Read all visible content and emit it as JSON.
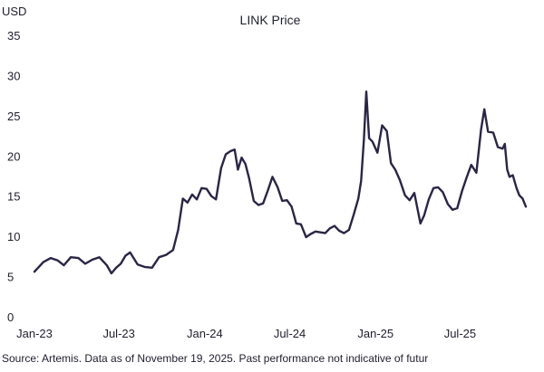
{
  "chart_data": {
    "type": "line",
    "title": "LINK Price",
    "ylabel": "USD",
    "xlabel": "",
    "ylim": [
      0,
      35
    ],
    "yticks": [
      0,
      5,
      10,
      15,
      20,
      25,
      30,
      35
    ],
    "xlim": [
      "2023-01-01",
      "2025-11-19"
    ],
    "xticks": [
      {
        "date": "2023-01-01",
        "label": "Jan-23"
      },
      {
        "date": "2023-07-01",
        "label": "Jul-23"
      },
      {
        "date": "2024-01-01",
        "label": "Jan-24"
      },
      {
        "date": "2024-07-01",
        "label": "Jul-24"
      },
      {
        "date": "2025-01-01",
        "label": "Jan-25"
      },
      {
        "date": "2025-07-01",
        "label": "Jul-25"
      }
    ],
    "grid": false,
    "legend": "none",
    "line_color": "#2a2545",
    "series": [
      {
        "x": [
          "2023-01-01",
          "2023-01-20",
          "2023-02-05",
          "2023-02-20",
          "2023-03-05",
          "2023-03-20",
          "2023-04-05",
          "2023-04-20",
          "2023-05-05",
          "2023-05-20",
          "2023-06-05",
          "2023-06-15",
          "2023-06-25",
          "2023-07-05",
          "2023-07-15",
          "2023-07-25",
          "2023-08-10",
          "2023-08-25",
          "2023-09-10",
          "2023-09-25",
          "2023-10-10",
          "2023-10-25",
          "2023-11-05",
          "2023-11-15",
          "2023-11-25",
          "2023-12-05",
          "2023-12-15",
          "2023-12-25",
          "2024-01-05",
          "2024-01-15",
          "2024-01-25",
          "2024-02-05",
          "2024-02-15",
          "2024-02-25",
          "2024-03-05",
          "2024-03-12",
          "2024-03-20",
          "2024-03-28",
          "2024-04-05",
          "2024-04-15",
          "2024-04-25",
          "2024-05-05",
          "2024-05-15",
          "2024-05-25",
          "2024-06-05",
          "2024-06-15",
          "2024-06-25",
          "2024-07-05",
          "2024-07-15",
          "2024-07-25",
          "2024-08-05",
          "2024-08-15",
          "2024-08-25",
          "2024-09-05",
          "2024-09-15",
          "2024-09-25",
          "2024-10-05",
          "2024-10-15",
          "2024-10-25",
          "2024-11-05",
          "2024-11-15",
          "2024-11-25",
          "2024-12-01",
          "2024-12-07",
          "2024-12-12",
          "2024-12-18",
          "2024-12-25",
          "2025-01-05",
          "2025-01-15",
          "2025-01-25",
          "2025-02-03",
          "2025-02-12",
          "2025-02-22",
          "2025-03-05",
          "2025-03-15",
          "2025-03-25",
          "2025-04-07",
          "2025-04-15",
          "2025-04-25",
          "2025-05-05",
          "2025-05-15",
          "2025-05-25",
          "2025-06-05",
          "2025-06-15",
          "2025-06-25",
          "2025-07-05",
          "2025-07-15",
          "2025-07-25",
          "2025-08-05",
          "2025-08-15",
          "2025-08-22",
          "2025-08-30",
          "2025-09-10",
          "2025-09-20",
          "2025-09-30",
          "2025-10-05",
          "2025-10-10",
          "2025-10-15",
          "2025-10-22",
          "2025-10-30",
          "2025-11-05",
          "2025-11-12",
          "2025-11-19"
        ],
        "y": [
          5.6,
          6.8,
          7.3,
          7.0,
          6.4,
          7.4,
          7.3,
          6.6,
          7.1,
          7.4,
          6.4,
          5.4,
          6.1,
          6.6,
          7.6,
          8.0,
          6.5,
          6.2,
          6.1,
          7.4,
          7.7,
          8.3,
          10.8,
          14.7,
          14.2,
          15.2,
          14.6,
          16.0,
          15.9,
          15.0,
          14.6,
          18.5,
          20.2,
          20.6,
          20.8,
          18.3,
          19.8,
          19.0,
          17.2,
          14.4,
          13.9,
          14.1,
          15.7,
          17.4,
          16.1,
          14.4,
          14.5,
          13.7,
          11.6,
          11.5,
          9.9,
          10.3,
          10.6,
          10.5,
          10.4,
          11.0,
          11.3,
          10.7,
          10.4,
          10.8,
          12.7,
          14.7,
          16.9,
          22.1,
          28.0,
          22.2,
          21.8,
          20.4,
          23.8,
          23.1,
          19.1,
          18.3,
          17.0,
          15.1,
          14.5,
          15.4,
          11.6,
          12.6,
          14.6,
          16.0,
          16.1,
          15.5,
          14.0,
          13.3,
          13.5,
          15.6,
          17.3,
          18.9,
          17.9,
          23.3,
          25.8,
          23.0,
          22.9,
          21.1,
          20.9,
          21.5,
          18.3,
          17.4,
          17.6,
          16.0,
          15.1,
          14.7,
          13.7
        ]
      }
    ]
  },
  "source_note": "Source: Artemis. Data as of November 19, 2025. Past performance not indicative of futur"
}
